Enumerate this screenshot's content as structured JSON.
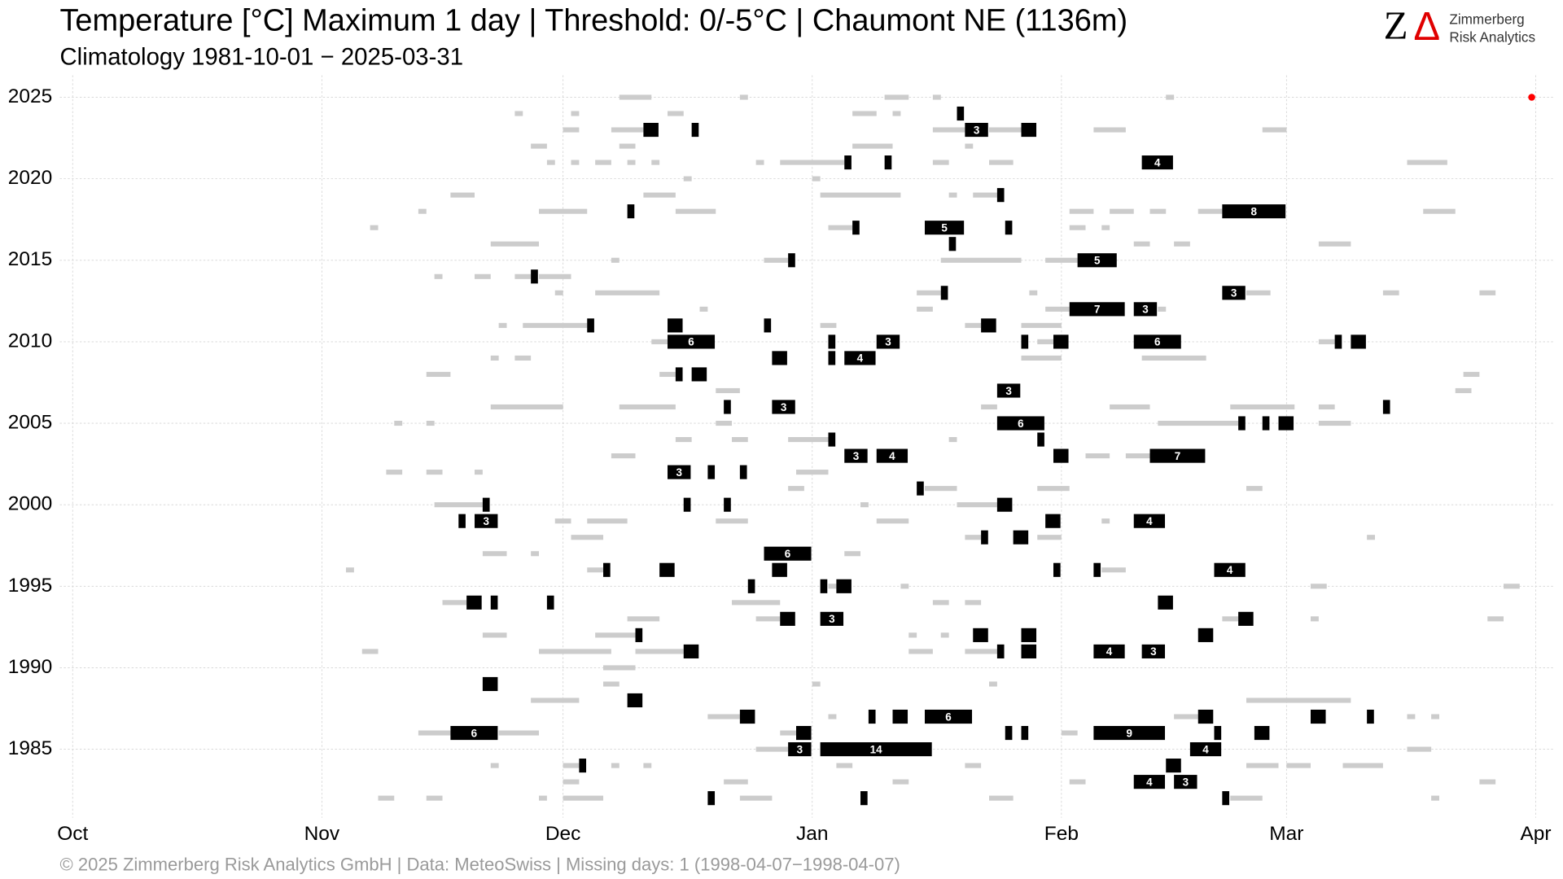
{
  "chart_data": {
    "type": "event-timeline",
    "title": "Temperature [°C] Maximum 1 day | Threshold: 0/-5°C | Chaumont  NE (1136m)",
    "subtitle": "Climatology 1981-10-01 − 2025-03-31",
    "footer": "©  2025 Zimmerberg Risk Analytics GmbH | Data: MeteoSwiss | Missing days: 1 (1998-04-07−1998-04-07)",
    "logo_mark": [
      "Z",
      "Δ"
    ],
    "logo_lines": [
      "Zimmerberg",
      "Risk Analytics"
    ],
    "xlim": [
      -1.6,
      184.4
    ],
    "xticks": [
      {
        "value": 0,
        "label": "Oct"
      },
      {
        "value": 31,
        "label": "Nov"
      },
      {
        "value": 61,
        "label": "Dec"
      },
      {
        "value": 92,
        "label": "Jan"
      },
      {
        "value": 123,
        "label": "Feb"
      },
      {
        "value": 151,
        "label": "Mar"
      },
      {
        "value": 182,
        "label": "Apr"
      }
    ],
    "ylim": [
      1980.8,
      2026.35
    ],
    "yticks": [
      1985,
      1990,
      1995,
      2000,
      2005,
      2010,
      2015,
      2020,
      2025
    ],
    "grid": true,
    "strong_color": "#000000",
    "weak_color": "#cccccc",
    "today_color": "#ff0000",
    "today": [
      2025,
      181.5
    ],
    "events": [
      [
        2024,
        110,
        1
      ],
      [
        2023,
        71,
        2
      ],
      [
        2023,
        77,
        1
      ],
      [
        2023,
        111,
        3
      ],
      [
        2023,
        118,
        2
      ],
      [
        2021,
        96,
        1
      ],
      [
        2021,
        101,
        1
      ],
      [
        2021,
        133,
        4
      ],
      [
        2019,
        115,
        1
      ],
      [
        2018,
        69,
        1
      ],
      [
        2018,
        143,
        8
      ],
      [
        2017,
        97,
        1
      ],
      [
        2017,
        106,
        5
      ],
      [
        2017,
        116,
        1
      ],
      [
        2016,
        109,
        1
      ],
      [
        2015,
        89,
        1
      ],
      [
        2015,
        125,
        5
      ],
      [
        2014,
        57,
        1
      ],
      [
        2013,
        108,
        1
      ],
      [
        2013,
        143,
        3
      ],
      [
        2012,
        124,
        7
      ],
      [
        2012,
        132,
        3
      ],
      [
        2011,
        64,
        1
      ],
      [
        2011,
        74,
        2
      ],
      [
        2011,
        86,
        1
      ],
      [
        2011,
        113,
        2
      ],
      [
        2010,
        74,
        6
      ],
      [
        2010,
        94,
        1
      ],
      [
        2010,
        100,
        3
      ],
      [
        2010,
        118,
        1
      ],
      [
        2010,
        122,
        2
      ],
      [
        2010,
        132,
        6
      ],
      [
        2010,
        157,
        1
      ],
      [
        2010,
        159,
        2
      ],
      [
        2009,
        87,
        2
      ],
      [
        2009,
        94,
        1
      ],
      [
        2009,
        96,
        4
      ],
      [
        2008,
        75,
        1
      ],
      [
        2008,
        77,
        2
      ],
      [
        2007,
        115,
        3
      ],
      [
        2006,
        81,
        1
      ],
      [
        2006,
        87,
        3
      ],
      [
        2006,
        163,
        1
      ],
      [
        2005,
        115,
        6
      ],
      [
        2005,
        145,
        1
      ],
      [
        2005,
        148,
        1
      ],
      [
        2005,
        150,
        2
      ],
      [
        2004,
        94,
        1
      ],
      [
        2004,
        120,
        1
      ],
      [
        2003,
        96,
        3
      ],
      [
        2003,
        100,
        4
      ],
      [
        2003,
        122,
        2
      ],
      [
        2003,
        134,
        7
      ],
      [
        2002,
        74,
        3
      ],
      [
        2002,
        79,
        1
      ],
      [
        2002,
        83,
        1
      ],
      [
        2001,
        105,
        1
      ],
      [
        2000,
        51,
        1
      ],
      [
        2000,
        76,
        1
      ],
      [
        2000,
        81,
        1
      ],
      [
        2000,
        115,
        2
      ],
      [
        1999,
        48,
        1
      ],
      [
        1999,
        50,
        3
      ],
      [
        1999,
        121,
        2
      ],
      [
        1999,
        132,
        4
      ],
      [
        1998,
        113,
        1
      ],
      [
        1998,
        117,
        2
      ],
      [
        1997,
        86,
        6
      ],
      [
        1996,
        66,
        1
      ],
      [
        1996,
        73,
        2
      ],
      [
        1996,
        87,
        2
      ],
      [
        1996,
        122,
        1
      ],
      [
        1996,
        127,
        1
      ],
      [
        1996,
        142,
        4
      ],
      [
        1995,
        84,
        1
      ],
      [
        1995,
        93,
        1
      ],
      [
        1995,
        95,
        2
      ],
      [
        1994,
        49,
        2
      ],
      [
        1994,
        52,
        1
      ],
      [
        1994,
        59,
        1
      ],
      [
        1994,
        135,
        2
      ],
      [
        1993,
        88,
        2
      ],
      [
        1993,
        93,
        3
      ],
      [
        1993,
        145,
        2
      ],
      [
        1992,
        70,
        1
      ],
      [
        1992,
        112,
        2
      ],
      [
        1992,
        118,
        2
      ],
      [
        1992,
        140,
        2
      ],
      [
        1991,
        76,
        2
      ],
      [
        1991,
        115,
        1
      ],
      [
        1991,
        118,
        2
      ],
      [
        1991,
        127,
        4
      ],
      [
        1991,
        133,
        3
      ],
      [
        1989,
        51,
        2
      ],
      [
        1988,
        69,
        2
      ],
      [
        1987,
        83,
        2
      ],
      [
        1987,
        99,
        1
      ],
      [
        1987,
        102,
        2
      ],
      [
        1987,
        106,
        6
      ],
      [
        1987,
        140,
        2
      ],
      [
        1987,
        154,
        2
      ],
      [
        1987,
        161,
        1
      ],
      [
        1986,
        47,
        6
      ],
      [
        1986,
        90,
        2
      ],
      [
        1986,
        116,
        1
      ],
      [
        1986,
        118,
        1
      ],
      [
        1986,
        127,
        9
      ],
      [
        1986,
        142,
        1
      ],
      [
        1986,
        147,
        2
      ],
      [
        1985,
        89,
        3
      ],
      [
        1985,
        93,
        14
      ],
      [
        1985,
        139,
        4
      ],
      [
        1984,
        63,
        1
      ],
      [
        1984,
        136,
        2
      ],
      [
        1983,
        132,
        4
      ],
      [
        1983,
        137,
        3
      ],
      [
        1982,
        79,
        1
      ],
      [
        1982,
        98,
        1
      ],
      [
        1982,
        143,
        1
      ]
    ],
    "weak_events": [
      [
        2025,
        68,
        4
      ],
      [
        2025,
        83,
        1
      ],
      [
        2025,
        101,
        3
      ],
      [
        2025,
        107,
        1
      ],
      [
        2025,
        136,
        1
      ],
      [
        2024,
        55,
        1
      ],
      [
        2024,
        62,
        1
      ],
      [
        2024,
        74,
        2
      ],
      [
        2024,
        97,
        3
      ],
      [
        2024,
        102,
        1
      ],
      [
        2023,
        61,
        2
      ],
      [
        2023,
        67,
        4
      ],
      [
        2023,
        107,
        4
      ],
      [
        2023,
        114,
        4
      ],
      [
        2023,
        127,
        4
      ],
      [
        2023,
        148,
        3
      ],
      [
        2022,
        57,
        2
      ],
      [
        2022,
        68,
        2
      ],
      [
        2022,
        97,
        5
      ],
      [
        2022,
        111,
        1
      ],
      [
        2021,
        59,
        1
      ],
      [
        2021,
        62,
        1
      ],
      [
        2021,
        65,
        2
      ],
      [
        2021,
        69,
        1
      ],
      [
        2021,
        72,
        1
      ],
      [
        2021,
        85,
        1
      ],
      [
        2021,
        88,
        8
      ],
      [
        2021,
        107,
        2
      ],
      [
        2021,
        114,
        3
      ],
      [
        2021,
        166,
        5
      ],
      [
        2020,
        76,
        1
      ],
      [
        2020,
        92,
        1
      ],
      [
        2019,
        47,
        3
      ],
      [
        2019,
        71,
        4
      ],
      [
        2019,
        93,
        10
      ],
      [
        2019,
        109,
        1
      ],
      [
        2019,
        112,
        3
      ],
      [
        2018,
        43,
        1
      ],
      [
        2018,
        58,
        6
      ],
      [
        2018,
        75,
        5
      ],
      [
        2018,
        124,
        3
      ],
      [
        2018,
        129,
        3
      ],
      [
        2018,
        134,
        2
      ],
      [
        2018,
        140,
        3
      ],
      [
        2018,
        168,
        4
      ],
      [
        2017,
        37,
        1
      ],
      [
        2017,
        94,
        3
      ],
      [
        2017,
        124,
        2
      ],
      [
        2017,
        128,
        1
      ],
      [
        2016,
        52,
        6
      ],
      [
        2016,
        132,
        2
      ],
      [
        2016,
        137,
        2
      ],
      [
        2016,
        155,
        4
      ],
      [
        2015,
        67,
        1
      ],
      [
        2015,
        86,
        3
      ],
      [
        2015,
        108,
        10
      ],
      [
        2015,
        121,
        4
      ],
      [
        2014,
        45,
        1
      ],
      [
        2014,
        50,
        2
      ],
      [
        2014,
        55,
        2
      ],
      [
        2014,
        58,
        4
      ],
      [
        2013,
        60,
        1
      ],
      [
        2013,
        65,
        8
      ],
      [
        2013,
        105,
        3
      ],
      [
        2013,
        119,
        1
      ],
      [
        2013,
        146,
        3
      ],
      [
        2013,
        163,
        2
      ],
      [
        2013,
        175,
        2
      ],
      [
        2012,
        78,
        1
      ],
      [
        2012,
        105,
        2
      ],
      [
        2012,
        121,
        3
      ],
      [
        2012,
        135,
        1
      ],
      [
        2011,
        53,
        1
      ],
      [
        2011,
        56,
        8
      ],
      [
        2011,
        93,
        2
      ],
      [
        2011,
        111,
        2
      ],
      [
        2011,
        118,
        5
      ],
      [
        2010,
        72,
        2
      ],
      [
        2010,
        120,
        2
      ],
      [
        2010,
        155,
        2
      ],
      [
        2009,
        52,
        1
      ],
      [
        2009,
        55,
        2
      ],
      [
        2009,
        118,
        5
      ],
      [
        2009,
        133,
        8
      ],
      [
        2008,
        44,
        3
      ],
      [
        2008,
        73,
        2
      ],
      [
        2008,
        173,
        2
      ],
      [
        2007,
        80,
        3
      ],
      [
        2007,
        172,
        2
      ],
      [
        2006,
        52,
        9
      ],
      [
        2006,
        68,
        7
      ],
      [
        2006,
        113,
        2
      ],
      [
        2006,
        129,
        5
      ],
      [
        2006,
        144,
        8
      ],
      [
        2006,
        155,
        2
      ],
      [
        2005,
        40,
        1
      ],
      [
        2005,
        44,
        1
      ],
      [
        2005,
        80,
        2
      ],
      [
        2005,
        135,
        10
      ],
      [
        2005,
        155,
        4
      ],
      [
        2004,
        75,
        2
      ],
      [
        2004,
        82,
        2
      ],
      [
        2004,
        89,
        5
      ],
      [
        2004,
        109,
        1
      ],
      [
        2003,
        67,
        3
      ],
      [
        2003,
        126,
        3
      ],
      [
        2003,
        131,
        3
      ],
      [
        2002,
        39,
        2
      ],
      [
        2002,
        44,
        2
      ],
      [
        2002,
        50,
        1
      ],
      [
        2002,
        90,
        4
      ],
      [
        2001,
        89,
        2
      ],
      [
        2001,
        106,
        4
      ],
      [
        2001,
        120,
        4
      ],
      [
        2001,
        146,
        2
      ],
      [
        2000,
        45,
        6
      ],
      [
        2000,
        98,
        1
      ],
      [
        2000,
        110,
        5
      ],
      [
        1999,
        60,
        2
      ],
      [
        1999,
        64,
        5
      ],
      [
        1999,
        80,
        4
      ],
      [
        1999,
        100,
        4
      ],
      [
        1999,
        128,
        1
      ],
      [
        1998,
        62,
        4
      ],
      [
        1998,
        111,
        2
      ],
      [
        1998,
        120,
        3
      ],
      [
        1998,
        161,
        1
      ],
      [
        1997,
        51,
        3
      ],
      [
        1997,
        57,
        1
      ],
      [
        1997,
        96,
        2
      ],
      [
        1996,
        34,
        1
      ],
      [
        1996,
        64,
        2
      ],
      [
        1996,
        128,
        3
      ],
      [
        1995,
        94,
        1
      ],
      [
        1995,
        103,
        1
      ],
      [
        1995,
        154,
        2
      ],
      [
        1995,
        178,
        2
      ],
      [
        1994,
        46,
        3
      ],
      [
        1994,
        82,
        6
      ],
      [
        1994,
        107,
        2
      ],
      [
        1994,
        111,
        2
      ],
      [
        1993,
        69,
        4
      ],
      [
        1993,
        85,
        3
      ],
      [
        1993,
        143,
        2
      ],
      [
        1993,
        154,
        1
      ],
      [
        1993,
        176,
        2
      ],
      [
        1992,
        51,
        3
      ],
      [
        1992,
        65,
        5
      ],
      [
        1992,
        104,
        1
      ],
      [
        1992,
        108,
        1
      ],
      [
        1991,
        36,
        2
      ],
      [
        1991,
        58,
        9
      ],
      [
        1991,
        70,
        6
      ],
      [
        1991,
        104,
        3
      ],
      [
        1991,
        111,
        4
      ],
      [
        1990,
        66,
        4
      ],
      [
        1989,
        66,
        2
      ],
      [
        1989,
        92,
        1
      ],
      [
        1989,
        114,
        1
      ],
      [
        1988,
        57,
        6
      ],
      [
        1988,
        146,
        13
      ],
      [
        1987,
        79,
        4
      ],
      [
        1987,
        94,
        1
      ],
      [
        1987,
        137,
        3
      ],
      [
        1987,
        166,
        1
      ],
      [
        1987,
        169,
        1
      ],
      [
        1986,
        43,
        4
      ],
      [
        1986,
        53,
        5
      ],
      [
        1986,
        88,
        2
      ],
      [
        1986,
        123,
        2
      ],
      [
        1985,
        85,
        4
      ],
      [
        1985,
        166,
        3
      ],
      [
        1984,
        52,
        1
      ],
      [
        1984,
        61,
        2
      ],
      [
        1984,
        67,
        1
      ],
      [
        1984,
        71,
        1
      ],
      [
        1984,
        95,
        2
      ],
      [
        1984,
        111,
        2
      ],
      [
        1984,
        146,
        4
      ],
      [
        1984,
        151,
        3
      ],
      [
        1984,
        158,
        5
      ],
      [
        1983,
        61,
        2
      ],
      [
        1983,
        81,
        3
      ],
      [
        1983,
        102,
        2
      ],
      [
        1983,
        124,
        2
      ],
      [
        1983,
        175,
        2
      ],
      [
        1982,
        38,
        2
      ],
      [
        1982,
        44,
        2
      ],
      [
        1982,
        58,
        1
      ],
      [
        1982,
        61,
        5
      ],
      [
        1982,
        83,
        4
      ],
      [
        1982,
        114,
        3
      ],
      [
        1982,
        144,
        4
      ],
      [
        1982,
        169,
        1
      ]
    ]
  }
}
